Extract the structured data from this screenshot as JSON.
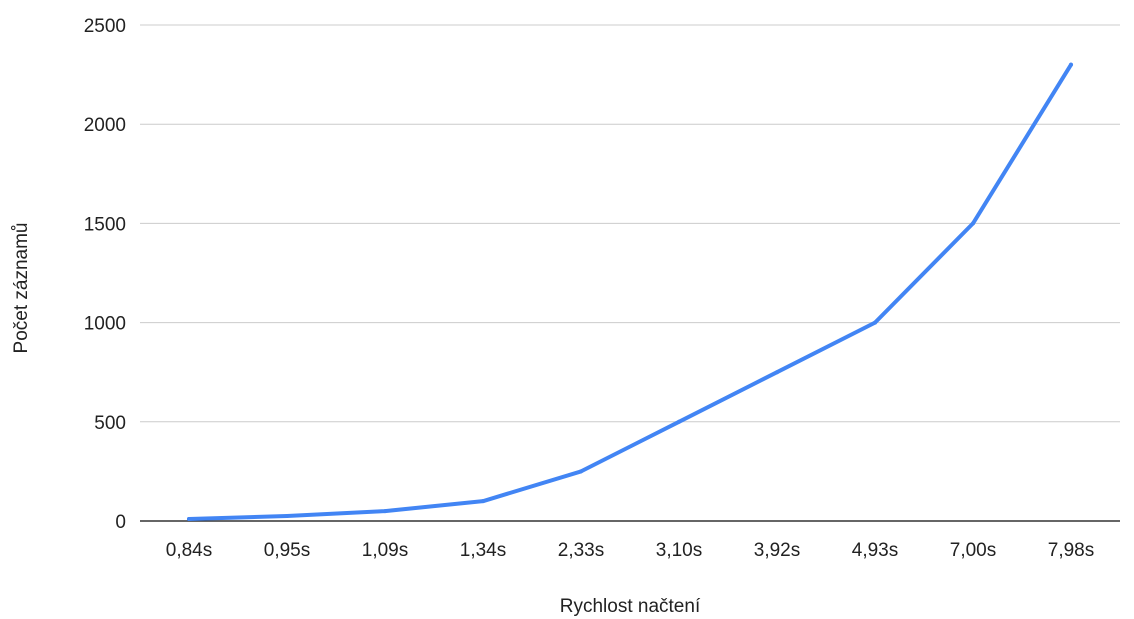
{
  "chart_data": {
    "type": "line",
    "title": "",
    "xlabel": "Rychlost načtení",
    "ylabel": "Počet záznamů",
    "categories": [
      "0,84s",
      "0,95s",
      "1,09s",
      "1,34s",
      "2,33s",
      "3,10s",
      "3,92s",
      "4,93s",
      "7,00s",
      "7,98s"
    ],
    "series": [
      {
        "values": [
          10,
          25,
          50,
          100,
          250,
          500,
          750,
          1000,
          1500,
          2300
        ],
        "color": "#4285f4"
      }
    ],
    "ylim": [
      0,
      2500
    ],
    "yticks": [
      0,
      500,
      1000,
      1500,
      2000,
      2500
    ],
    "grid": true,
    "legend": "none"
  }
}
